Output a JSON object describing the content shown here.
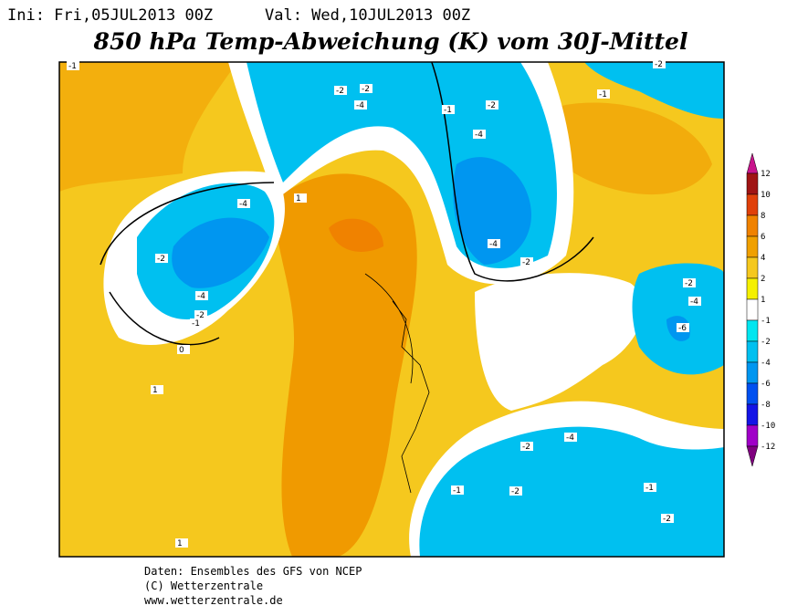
{
  "header": {
    "init": "Ini: Fri,05JUL2013 00Z",
    "valid": "Val: Wed,10JUL2013 00Z",
    "title": "850 hPa Temp-Abweichung (K) vom 30J-Mittel"
  },
  "colorbar": {
    "levels": [
      12,
      10,
      8,
      6,
      4,
      2,
      1,
      -1,
      -2,
      -4,
      -6,
      -8,
      -10,
      -12
    ],
    "colors": [
      "#c8148c",
      "#a01414",
      "#e0400a",
      "#f08200",
      "#f0a000",
      "#f5c81e",
      "#f5f000",
      "#ffffff",
      "#00e6f0",
      "#00c0f0",
      "#0096f0",
      "#0050f0",
      "#1414e6",
      "#a000c8",
      "#800080"
    ]
  },
  "map": {
    "contour_labels": [
      "-1",
      "-4",
      "-2",
      "-4",
      "-2",
      "-1",
      "-4",
      "-2",
      "-2",
      "-4",
      "-4",
      "-2",
      "-4",
      "-6",
      "-2",
      "-4",
      "-2",
      "-2",
      "-1",
      "-2",
      "-1",
      "1",
      "1",
      "0",
      "1",
      "-1",
      "-2",
      "-2",
      "-1"
    ]
  },
  "footer": [
    "Daten: Ensembles des GFS von NCEP",
    "(C) Wetterzentrale",
    "www.wetterzentrale.de"
  ]
}
